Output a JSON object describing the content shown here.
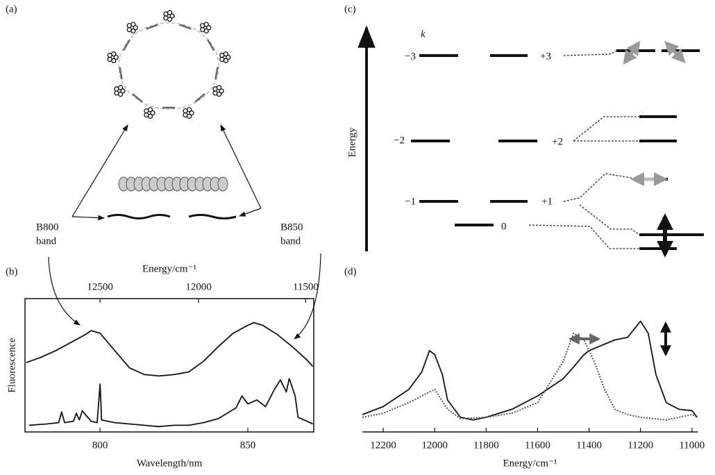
{
  "panel_labels": [
    "(a)",
    "(b)",
    "(c)",
    "(d)"
  ],
  "diagram_a": {
    "b800": [
      "B800",
      "band"
    ],
    "b850": [
      "B850",
      "band"
    ]
  },
  "diagram_c": {
    "axis_label": "Energy",
    "k_label": "k",
    "level_labels": [
      "−3",
      "+3",
      "−2",
      "+2",
      "−1",
      "+1",
      "0"
    ]
  },
  "chart_data": [
    {
      "type": "line",
      "xlabel": "Wavelength/nm",
      "ylabel": "Fluorescence",
      "xlim": [
        774.6,
        872.3
      ],
      "ylim": [
        0,
        1
      ],
      "xticks": [
        800,
        850
      ],
      "frame": true,
      "top_axis": {
        "label": "Energy/cm⁻¹",
        "ticks": [
          12500,
          12000,
          11500
        ]
      },
      "series": [
        {
          "color": "#111",
          "style": "solid",
          "x": [
            775,
            780,
            785,
            790,
            795,
            797,
            800,
            805,
            810,
            815,
            820,
            825,
            830,
            835,
            840,
            845,
            850,
            852,
            855,
            860,
            865,
            870,
            872
          ],
          "values": [
            0.52,
            0.56,
            0.61,
            0.67,
            0.73,
            0.76,
            0.74,
            0.61,
            0.48,
            0.43,
            0.42,
            0.43,
            0.45,
            0.53,
            0.64,
            0.74,
            0.8,
            0.82,
            0.8,
            0.73,
            0.64,
            0.54,
            0.49
          ]
        },
        {
          "color": "#111",
          "style": "solid",
          "x": [
            776,
            782,
            786,
            787,
            788,
            791,
            792,
            793,
            794,
            795,
            797,
            799,
            800,
            800.5,
            805,
            810,
            815,
            820,
            825,
            830,
            835,
            840,
            843,
            846,
            848,
            850,
            853,
            856,
            859,
            861,
            863,
            864,
            866,
            867,
            870,
            872
          ],
          "values": [
            0.05,
            0.06,
            0.07,
            0.15,
            0.07,
            0.08,
            0.14,
            0.09,
            0.16,
            0.13,
            0.08,
            0.07,
            0.36,
            0.09,
            0.07,
            0.06,
            0.05,
            0.04,
            0.05,
            0.05,
            0.07,
            0.1,
            0.14,
            0.18,
            0.27,
            0.21,
            0.24,
            0.19,
            0.32,
            0.39,
            0.3,
            0.4,
            0.27,
            0.11,
            0.08,
            0.06
          ]
        }
      ]
    },
    {
      "type": "line",
      "xlabel": "Energy/cm⁻¹",
      "xlim": [
        12281,
        10978
      ],
      "ylim": [
        0,
        1
      ],
      "xticks": [
        12200,
        12000,
        11800,
        11600,
        11400,
        11200,
        11000
      ],
      "frame": false,
      "series": [
        {
          "color": "#111",
          "style": "solid",
          "x": [
            12281,
            12200,
            12100,
            12050,
            12020,
            12000,
            11970,
            11950,
            11900,
            11850,
            11800,
            11700,
            11600,
            11500,
            11450,
            11420,
            11400,
            11300,
            11250,
            11200,
            11170,
            11140,
            11100,
            11050,
            11000,
            10980
          ],
          "values": [
            0.13,
            0.19,
            0.32,
            0.45,
            0.61,
            0.58,
            0.43,
            0.24,
            0.11,
            0.09,
            0.11,
            0.17,
            0.27,
            0.4,
            0.51,
            0.58,
            0.61,
            0.69,
            0.71,
            0.83,
            0.74,
            0.43,
            0.22,
            0.17,
            0.16,
            0.11
          ]
        },
        {
          "color": "#555",
          "style": "dotted",
          "x": [
            12281,
            12200,
            12100,
            12050,
            12000,
            11950,
            11900,
            11800,
            11700,
            11600,
            11500,
            11460,
            11420,
            11380,
            11340,
            11300,
            11250,
            11200,
            11100,
            11000,
            10980
          ],
          "values": [
            0.11,
            0.14,
            0.22,
            0.27,
            0.32,
            0.17,
            0.1,
            0.11,
            0.14,
            0.22,
            0.53,
            0.74,
            0.69,
            0.53,
            0.32,
            0.17,
            0.13,
            0.11,
            0.09,
            0.13,
            0.11
          ]
        }
      ]
    }
  ]
}
